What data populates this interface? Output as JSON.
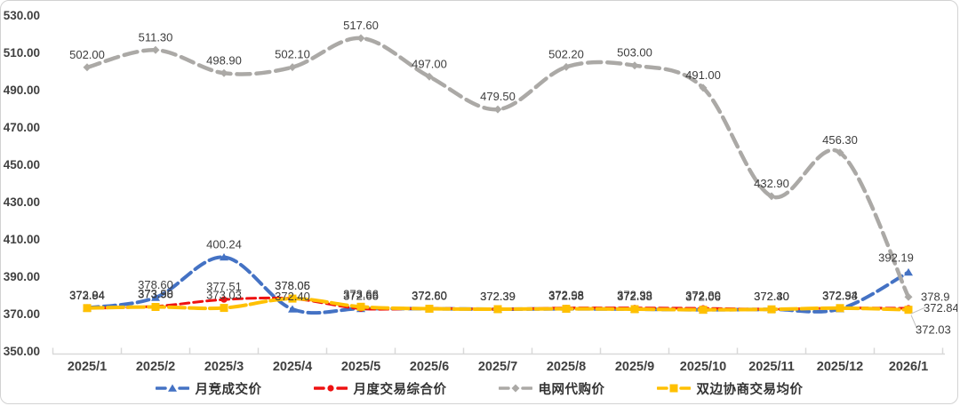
{
  "chart_data": {
    "type": "line",
    "title": "",
    "grid": false,
    "legend_position": "bottom",
    "ylim": [
      350,
      530
    ],
    "ytick_step": 20,
    "yticks": [
      "530.00",
      "510.00",
      "490.00",
      "470.00",
      "450.00",
      "430.00",
      "410.00",
      "390.00",
      "370.00",
      "350.00"
    ],
    "categories": [
      "2025/1",
      "2025/2",
      "2025/3",
      "2025/4",
      "2025/5",
      "2025/6",
      "2025/7",
      "2025/8",
      "2025/9",
      "2025/10",
      "2025/11",
      "2025/12",
      "2026/1"
    ],
    "axis_color": "#d9d9d9",
    "label_color": "#404040",
    "series": [
      {
        "name": "月竞成交价",
        "color": "#4472C4",
        "marker": "triangle",
        "width": 4,
        "dash": "13 6",
        "values": [
          373.04,
          378.6,
          400.24,
          372.4,
          372.66,
          372.6,
          372.39,
          372.58,
          372.38,
          372.06,
          372.3,
          372.53,
          392.19
        ],
        "labels": [
          "373.04",
          "378.60",
          "400.24",
          "372.40",
          "372.66",
          "372.60",
          "372.39",
          "372.58",
          "372.38",
          "372.06",
          "372.30",
          "372.53",
          "392.19"
        ],
        "label_overrides": {
          "12": {
            "dx": -14,
            "dy": -12
          }
        }
      },
      {
        "name": "月度交易综合价",
        "color": "#EE1111",
        "marker": "circle",
        "width": 3,
        "dash": "10 5",
        "values": [
          372.84,
          373.9,
          377.51,
          378.05,
          372.65,
          372.8,
          372.39,
          372.98,
          372.99,
          372.8,
          372.4,
          372.94,
          372.84
        ],
        "labels": [
          "372.84",
          "373.90",
          "377.51",
          "378.05",
          "372.65",
          "372.80",
          "372.39",
          "372.98",
          "372.99",
          "372.80",
          "372.40",
          "372.94",
          "372.84"
        ],
        "label_overrides": {
          "12": {
            "dx": 17,
            "dy": 4,
            "anchor": "start",
            "leader": true
          }
        }
      },
      {
        "name": "电网代购价",
        "color": "#ABA9A6",
        "marker": "diamond",
        "width": 4.5,
        "dash": "15 7",
        "values": [
          502.0,
          511.3,
          498.9,
          502.1,
          517.6,
          497.0,
          479.5,
          502.2,
          503.0,
          491.0,
          432.9,
          456.3,
          378.9
        ],
        "labels": [
          "502.00",
          "511.30",
          "498.90",
          "502.10",
          "517.60",
          "497.00",
          "479.50",
          "502.20",
          "503.00",
          "491.00",
          "432.90",
          "456.30",
          "378.9"
        ],
        "label_overrides": {
          "12": {
            "dx": 14,
            "dy": 4,
            "anchor": "start"
          }
        }
      },
      {
        "name": "双边协商交易均价",
        "color": "#FFC000",
        "marker": "square",
        "width": 4,
        "dash": "18 5",
        "values": [
          372.94,
          373.58,
          373.03,
          378.06,
          373.66,
          372.6,
          372.39,
          372.58,
          372.38,
          372.06,
          372.3,
          372.94,
          372.03
        ],
        "labels": [
          "372.94",
          "373.58",
          "373.03",
          "378.06",
          "373.66",
          "372.60",
          "372.39",
          "372.58",
          "372.38",
          "372.06",
          "372.30",
          "372.94",
          "372.03"
        ],
        "label_overrides": {
          "12": {
            "dx": 8,
            "dy": 27,
            "anchor": "start",
            "leader": true
          }
        }
      }
    ]
  }
}
